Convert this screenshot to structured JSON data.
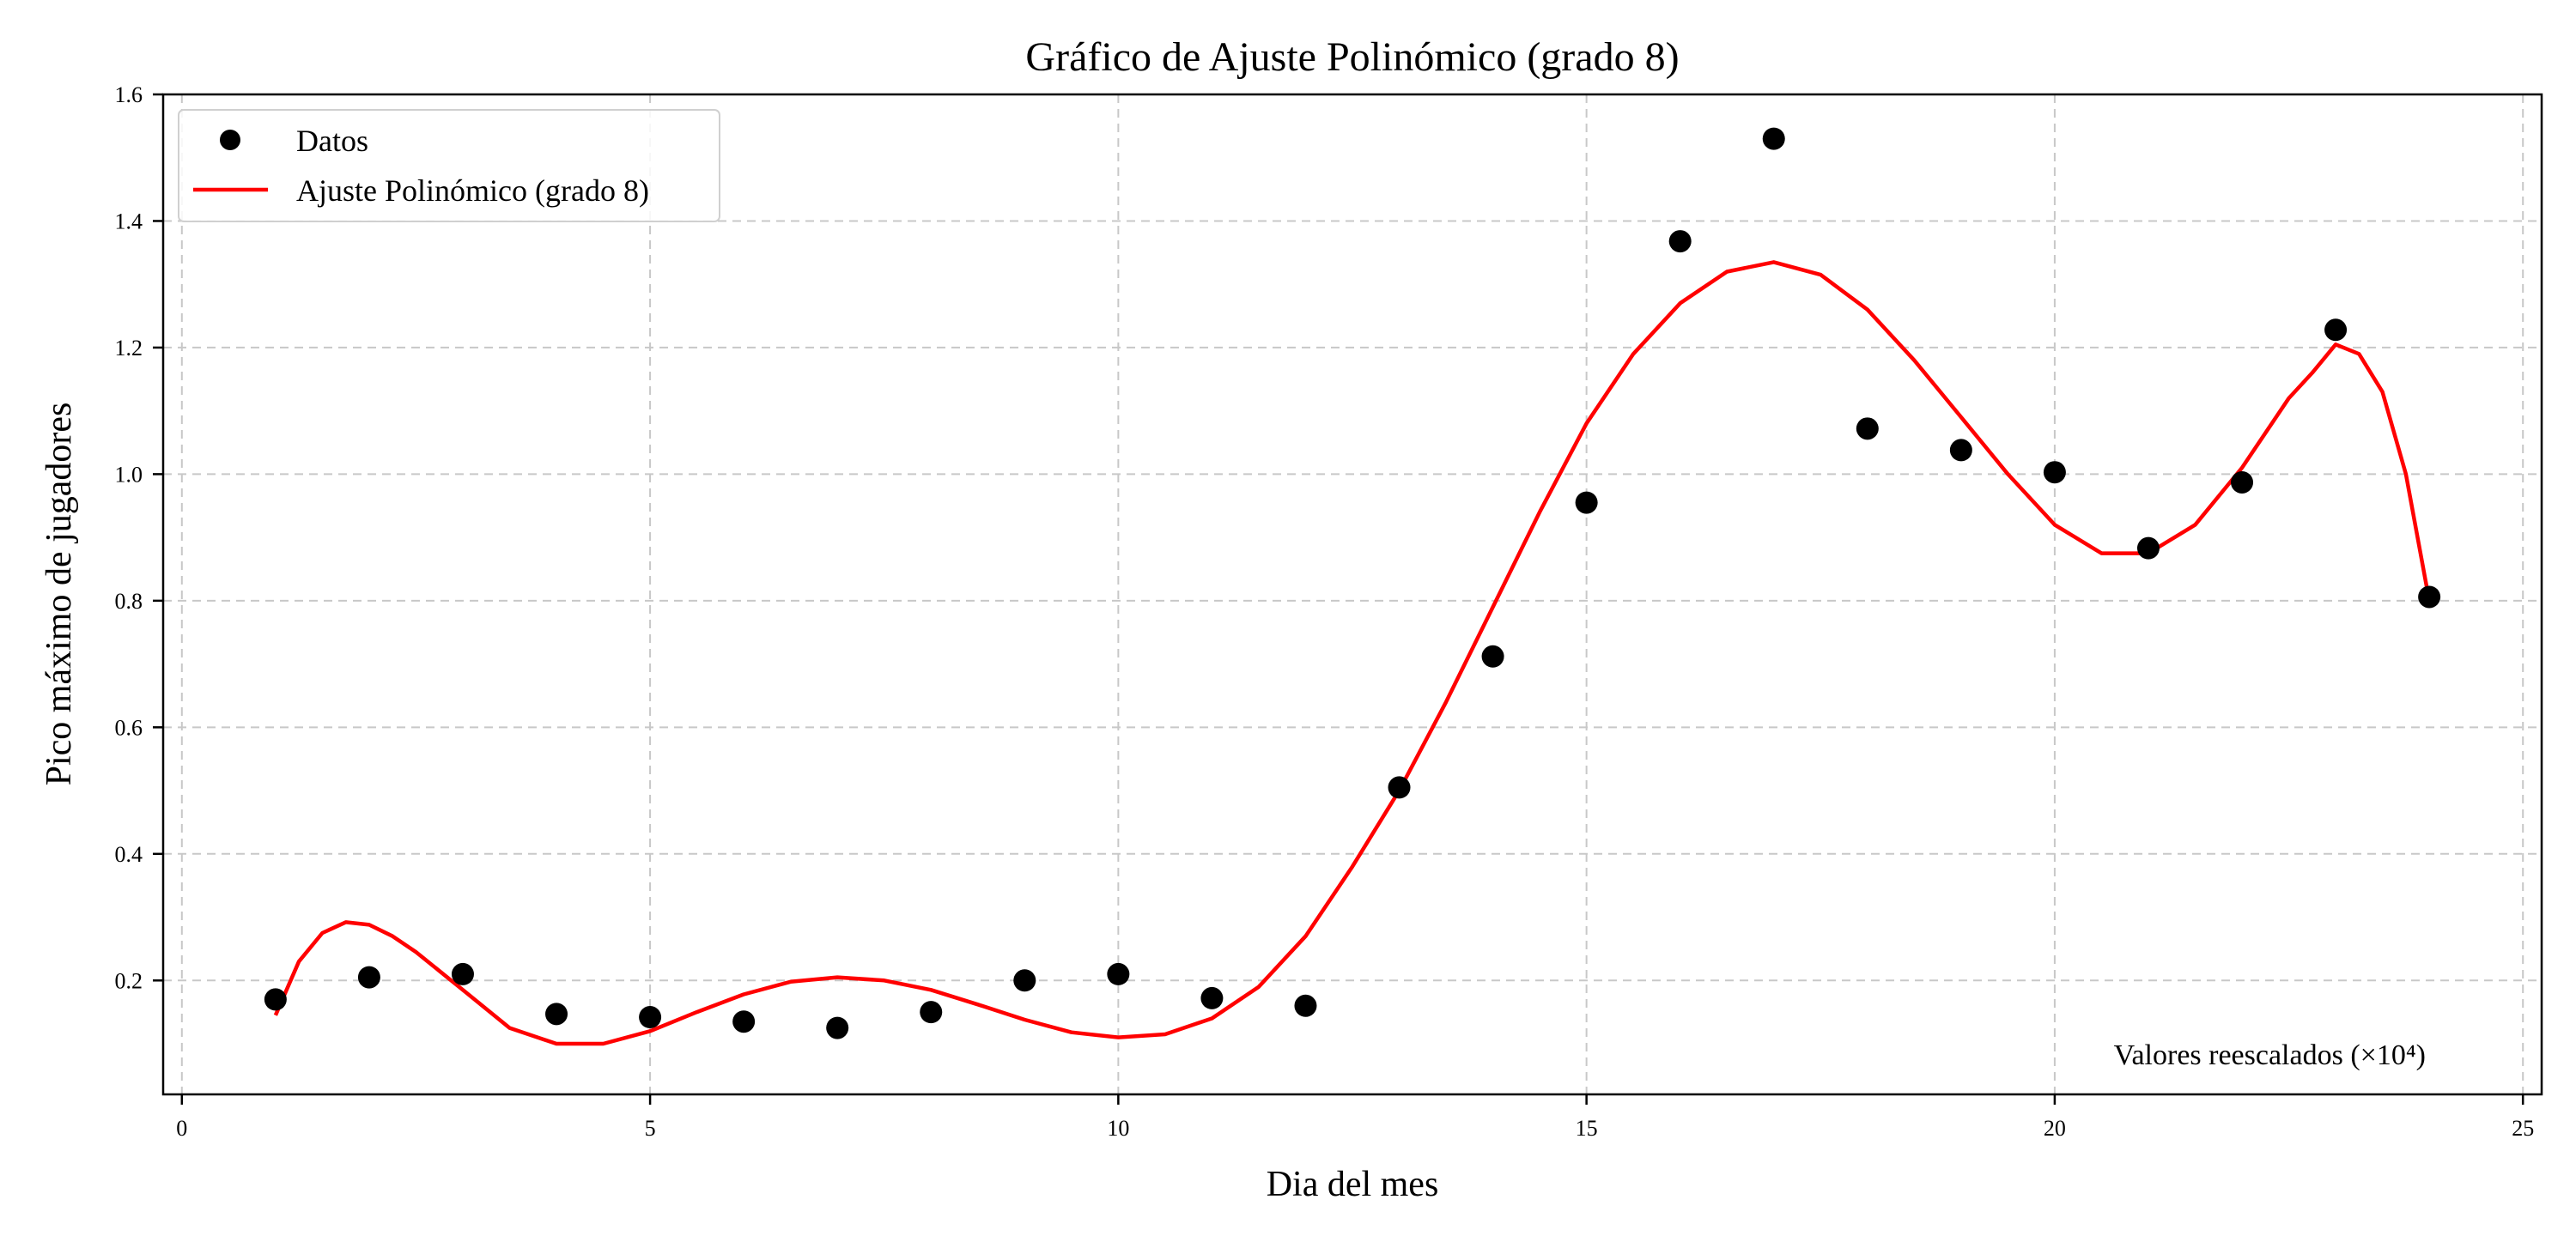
{
  "chart_data": {
    "type": "scatter",
    "title": "Gráfico de Ajuste Polinómico (grado 8)",
    "xlabel": "Dia del mes",
    "ylabel": "Pico máximo de jugadores",
    "xlim": [
      -0.2,
      25.2
    ],
    "ylim": [
      0.02,
      1.6
    ],
    "xticks": [
      0,
      5,
      10,
      15,
      20,
      25
    ],
    "yticks": [
      0.2,
      0.4,
      0.6,
      0.8,
      1.0,
      1.2,
      1.4,
      1.6
    ],
    "grid": true,
    "legend_position": "top-left",
    "annotation": "Valores reescalados (×10⁴)",
    "series": [
      {
        "name": "Datos",
        "kind": "scatter",
        "color": "#000000",
        "x": [
          1,
          2,
          3,
          4,
          5,
          6,
          7,
          8,
          9,
          10,
          11,
          12,
          13,
          14,
          15,
          16,
          17,
          18,
          19,
          20,
          21,
          22,
          23,
          24
        ],
        "y": [
          0.17,
          0.205,
          0.21,
          0.147,
          0.142,
          0.135,
          0.125,
          0.15,
          0.2,
          0.21,
          0.172,
          0.16,
          0.505,
          0.712,
          0.955,
          1.368,
          1.53,
          1.072,
          1.038,
          1.003,
          0.883,
          0.987,
          1.228,
          0.806
        ]
      },
      {
        "name": "Ajuste Polinómico (grado 8)",
        "kind": "line",
        "color": "#ff0000",
        "x": [
          1,
          1.25,
          1.5,
          1.75,
          2,
          2.25,
          2.5,
          3,
          3.5,
          4,
          4.5,
          5,
          5.5,
          6,
          6.5,
          7,
          7.5,
          8,
          8.5,
          9,
          9.5,
          10,
          10.5,
          11,
          11.5,
          12,
          12.5,
          13,
          13.5,
          14,
          14.5,
          15,
          15.5,
          16,
          16.5,
          17,
          17.5,
          18,
          18.5,
          19,
          19.5,
          20,
          20.5,
          21,
          21.5,
          22,
          22.5,
          22.75,
          23,
          23.25,
          23.5,
          23.75,
          24
        ],
        "y": [
          0.145,
          0.23,
          0.275,
          0.292,
          0.288,
          0.27,
          0.245,
          0.185,
          0.125,
          0.1,
          0.1,
          0.12,
          0.15,
          0.178,
          0.198,
          0.205,
          0.2,
          0.185,
          0.162,
          0.138,
          0.118,
          0.11,
          0.115,
          0.14,
          0.19,
          0.27,
          0.38,
          0.5,
          0.64,
          0.79,
          0.94,
          1.08,
          1.19,
          1.27,
          1.32,
          1.335,
          1.315,
          1.26,
          1.18,
          1.09,
          1.0,
          0.92,
          0.875,
          0.875,
          0.92,
          1.01,
          1.12,
          1.16,
          1.205,
          1.19,
          1.13,
          1.0,
          0.8
        ]
      }
    ]
  }
}
